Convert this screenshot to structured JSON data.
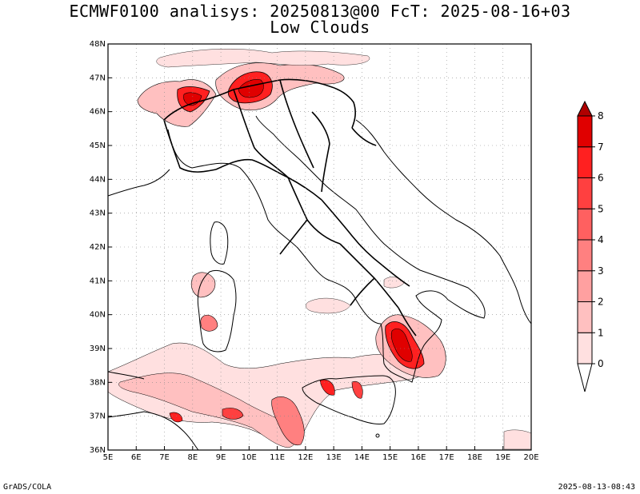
{
  "header": {
    "title_line1": "ECMWF0100 analisys: 20250813@00 FcT: 2025-08-16+03",
    "title_line2": "Low Clouds"
  },
  "footer": {
    "left": "GrADS/COLA",
    "right": "2025-08-13-08:43"
  },
  "chart_data": {
    "type": "map",
    "x_axis": {
      "range": [
        5,
        20
      ],
      "ticks": [
        "5E",
        "6E",
        "7E",
        "8E",
        "9E",
        "10E",
        "11E",
        "12E",
        "13E",
        "14E",
        "15E",
        "16E",
        "17E",
        "18E",
        "19E",
        "20E"
      ]
    },
    "y_axis": {
      "range": [
        36,
        48
      ],
      "ticks": [
        "36N",
        "37N",
        "38N",
        "39N",
        "40N",
        "41N",
        "42N",
        "43N",
        "44N",
        "45N",
        "46N",
        "47N",
        "48N"
      ]
    },
    "grid": "dotted",
    "colorbar": {
      "placement": "right",
      "levels": [
        "0",
        "1",
        "2",
        "3",
        "4",
        "5",
        "6",
        "7",
        "8"
      ],
      "colors": [
        "#ffffff",
        "#ffe0e0",
        "#ffc0c0",
        "#ffa0a0",
        "#ff8080",
        "#ff6060",
        "#ff4040",
        "#ff2020",
        "#e00000",
        "#b00000"
      ]
    },
    "cloud_areas": [
      {
        "lon": 8.0,
        "lat": 46.4,
        "level": 8
      },
      {
        "lon": 10.0,
        "lat": 46.5,
        "level": 8
      },
      {
        "lon": 15.8,
        "lat": 39.0,
        "level": 8
      },
      {
        "lon": 8.5,
        "lat": 40.6,
        "level": 3
      },
      {
        "lon": 7.5,
        "lat": 37.6,
        "level": 3
      },
      {
        "lon": 11.8,
        "lat": 36.8,
        "level": 5
      },
      {
        "lon": 13.0,
        "lat": 37.8,
        "level": 6
      },
      {
        "lon": 9.3,
        "lat": 37.0,
        "level": 5
      },
      {
        "lon": 19.5,
        "lat": 36.3,
        "level": 2
      },
      {
        "lon": 15.0,
        "lat": 41.0,
        "level": 2
      }
    ]
  }
}
